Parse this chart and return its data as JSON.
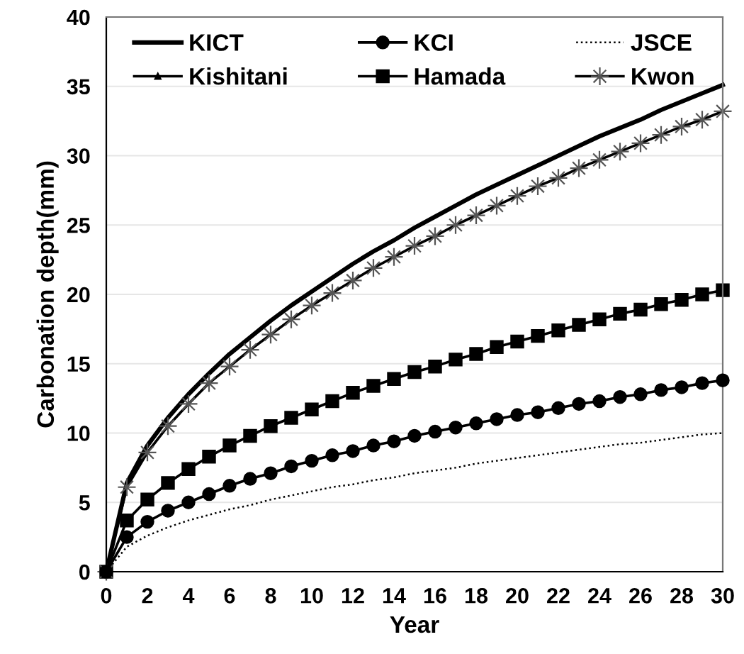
{
  "chart_data": {
    "type": "line",
    "xlabel": "Year",
    "ylabel": "Carbonation depth(mm)",
    "x": [
      0,
      1,
      2,
      3,
      4,
      5,
      6,
      7,
      8,
      9,
      10,
      11,
      12,
      13,
      14,
      15,
      16,
      17,
      18,
      19,
      20,
      21,
      22,
      23,
      24,
      25,
      26,
      27,
      28,
      29,
      30
    ],
    "xlim": [
      0,
      30
    ],
    "xticks": [
      0,
      2,
      4,
      6,
      8,
      10,
      12,
      14,
      16,
      18,
      20,
      22,
      24,
      26,
      28,
      30
    ],
    "ylim": [
      0,
      40
    ],
    "yticks": [
      0,
      5,
      10,
      15,
      20,
      25,
      30,
      35,
      40
    ],
    "grid": "y",
    "legend": "top",
    "series": [
      {
        "name": "KICT",
        "color": "#000000",
        "marker": "none",
        "line_style": "solid",
        "values": [
          0,
          6.4,
          9.1,
          11.1,
          12.8,
          14.3,
          15.7,
          16.9,
          18.1,
          19.2,
          20.2,
          21.2,
          22.2,
          23.1,
          23.9,
          24.8,
          25.6,
          26.4,
          27.2,
          27.9,
          28.6,
          29.3,
          30.0,
          30.7,
          31.4,
          32.0,
          32.6,
          33.3,
          33.9,
          34.5,
          35.1
        ]
      },
      {
        "name": "KCI",
        "color": "#000000",
        "marker": "circle",
        "line_style": "solid",
        "values": [
          0,
          2.5,
          3.6,
          4.4,
          5.0,
          5.6,
          6.2,
          6.7,
          7.1,
          7.6,
          8.0,
          8.4,
          8.7,
          9.1,
          9.4,
          9.8,
          10.1,
          10.4,
          10.7,
          11.0,
          11.3,
          11.5,
          11.8,
          12.1,
          12.3,
          12.6,
          12.8,
          13.1,
          13.3,
          13.6,
          13.8
        ]
      },
      {
        "name": "JSCE",
        "color": "#000000",
        "marker": "none",
        "line_style": "dotted",
        "values": [
          0,
          1.8,
          2.6,
          3.2,
          3.7,
          4.1,
          4.5,
          4.8,
          5.2,
          5.5,
          5.8,
          6.1,
          6.3,
          6.6,
          6.8,
          7.1,
          7.3,
          7.5,
          7.8,
          8.0,
          8.2,
          8.4,
          8.6,
          8.8,
          9.0,
          9.2,
          9.3,
          9.5,
          9.7,
          9.9,
          10.0
        ]
      },
      {
        "name": "Kishitani",
        "color": "#000000",
        "marker": "triangle",
        "line_style": "solid",
        "values": [
          null,
          null,
          null,
          null,
          null,
          null,
          null,
          null,
          null,
          null,
          null,
          null,
          null,
          null,
          null,
          null,
          null,
          null,
          null,
          null,
          null,
          null,
          null,
          null,
          null,
          null,
          null,
          null,
          null,
          null,
          null
        ]
      },
      {
        "name": "Hamada",
        "color": "#000000",
        "marker": "square",
        "line_style": "solid",
        "values": [
          0,
          3.7,
          5.2,
          6.4,
          7.4,
          8.3,
          9.1,
          9.8,
          10.5,
          11.1,
          11.7,
          12.3,
          12.9,
          13.4,
          13.9,
          14.4,
          14.8,
          15.3,
          15.7,
          16.2,
          16.6,
          17.0,
          17.4,
          17.8,
          18.2,
          18.6,
          18.9,
          19.3,
          19.6,
          20.0,
          20.3
        ]
      },
      {
        "name": "Kwon",
        "color": "#000000",
        "marker": "star",
        "line_style": "solid",
        "values": [
          0,
          6.1,
          8.6,
          10.5,
          12.1,
          13.6,
          14.8,
          16.0,
          17.1,
          18.2,
          19.2,
          20.1,
          21.0,
          21.9,
          22.7,
          23.5,
          24.2,
          25.0,
          25.7,
          26.4,
          27.1,
          27.8,
          28.4,
          29.1,
          29.7,
          30.3,
          30.9,
          31.5,
          32.1,
          32.6,
          33.2
        ]
      }
    ]
  }
}
